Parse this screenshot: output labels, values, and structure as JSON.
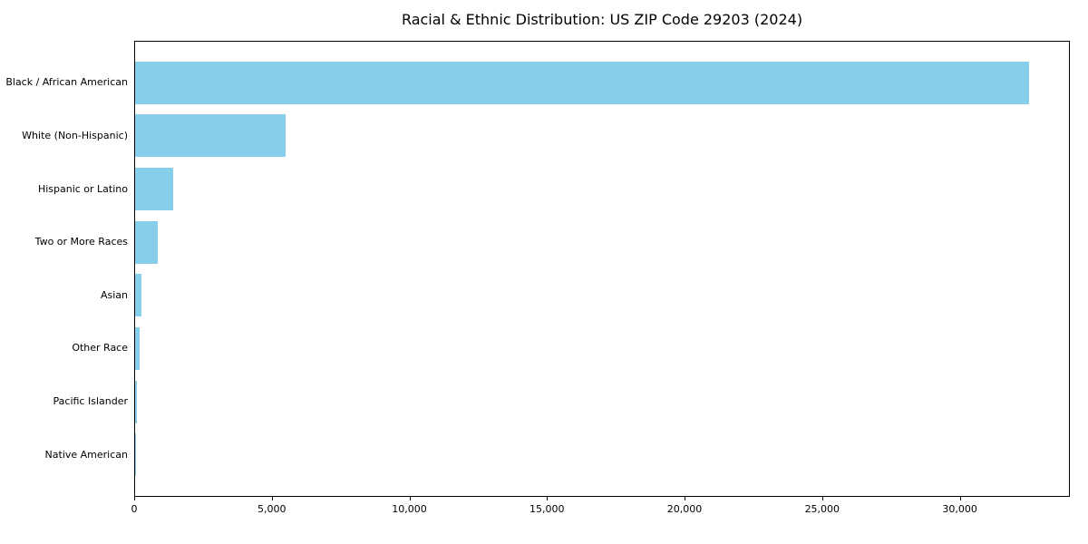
{
  "chart_data": {
    "type": "bar",
    "orientation": "horizontal",
    "title": "Racial & Ethnic Distribution: US ZIP Code 29203 (2024)",
    "categories": [
      "Black / African American",
      "White (Non-Hispanic)",
      "Hispanic or Latino",
      "Two or More Races",
      "Asian",
      "Other Race",
      "Pacific Islander",
      "Native American"
    ],
    "values": [
      32500,
      5470,
      1390,
      820,
      230,
      160,
      65,
      25
    ],
    "bar_color": "#87CEEB",
    "xlabel": "",
    "ylabel": "",
    "xlim": [
      0,
      34000
    ],
    "xticks": [
      0,
      5000,
      10000,
      15000,
      20000,
      25000,
      30000
    ],
    "xtick_labels": [
      "0",
      "5,000",
      "10,000",
      "15,000",
      "20,000",
      "25,000",
      "30,000"
    ],
    "grid": false,
    "legend_position": "none",
    "frame_color": "#000000",
    "background_color": "#ffffff"
  }
}
